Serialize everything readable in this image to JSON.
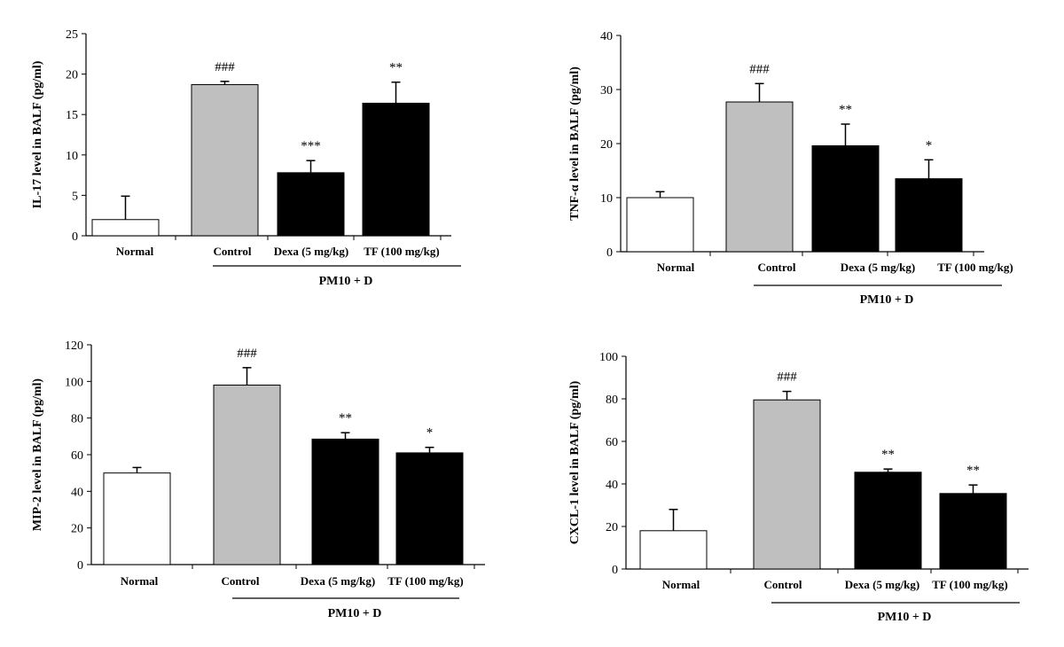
{
  "colors": {
    "normal": "#ffffff",
    "control": "#bfbfbf",
    "treatment": "#000000",
    "axis": "#000000"
  },
  "chart_data": [
    {
      "type": "bar",
      "ylabel": "IL-17 level in BALF (pg/ml)",
      "ylim": [
        0,
        25
      ],
      "yticks": [
        0,
        5,
        10,
        15,
        20,
        25
      ],
      "categories": [
        "Normal",
        "Control",
        "Dexa (5 mg/kg)",
        "TF (100 mg/kg)"
      ],
      "values": [
        2.0,
        18.7,
        7.8,
        16.4
      ],
      "errors": [
        2.9,
        0.4,
        1.5,
        2.6
      ],
      "significance": [
        "",
        "###",
        "***",
        "**"
      ],
      "group_label": "PM10 + D",
      "bar_colors": [
        "normal",
        "control",
        "treatment",
        "treatment"
      ]
    },
    {
      "type": "bar",
      "ylabel": "TNF-α level in BALF (pg/ml)",
      "ylim": [
        0,
        40
      ],
      "yticks": [
        0,
        10,
        20,
        30,
        40
      ],
      "categories": [
        "Normal",
        "Control",
        "Dexa (5 mg/kg)",
        "TF (100 mg/kg)"
      ],
      "values": [
        10.0,
        27.7,
        19.6,
        13.5
      ],
      "errors": [
        1.1,
        3.4,
        4.0,
        3.5
      ],
      "significance": [
        "",
        "###",
        "**",
        "*"
      ],
      "group_label": "PM10 + D",
      "bar_colors": [
        "normal",
        "control",
        "treatment",
        "treatment"
      ]
    },
    {
      "type": "bar",
      "ylabel": "MIP-2 level in BALF (pg/ml)",
      "ylim": [
        0,
        120
      ],
      "yticks": [
        0,
        20,
        40,
        60,
        80,
        100,
        120
      ],
      "categories": [
        "Normal",
        "Control",
        "Dexa (5 mg/kg)",
        "TF (100 mg/kg)"
      ],
      "values": [
        50.0,
        98.0,
        68.5,
        61.0
      ],
      "errors": [
        3.0,
        9.5,
        3.5,
        3.0
      ],
      "significance": [
        "",
        "###",
        "**",
        "*"
      ],
      "group_label": "PM10 + D",
      "bar_colors": [
        "normal",
        "control",
        "treatment",
        "treatment"
      ]
    },
    {
      "type": "bar",
      "ylabel": "CXCL-1 level in BALF (pg/ml)",
      "ylim": [
        0,
        100
      ],
      "yticks": [
        0,
        20,
        40,
        60,
        80,
        100
      ],
      "categories": [
        "Normal",
        "Control",
        "Dexa (5 mg/kg)",
        "TF (100 mg/kg)"
      ],
      "values": [
        18.0,
        79.5,
        45.5,
        35.5
      ],
      "errors": [
        10.0,
        4.0,
        1.5,
        4.0
      ],
      "significance": [
        "",
        "###",
        "**",
        "**"
      ],
      "group_label": "PM10 + D",
      "bar_colors": [
        "normal",
        "control",
        "treatment",
        "treatment"
      ]
    }
  ]
}
